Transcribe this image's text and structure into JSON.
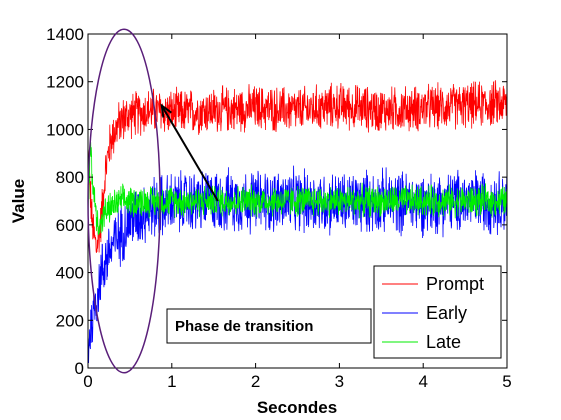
{
  "chart_data": {
    "type": "line",
    "title": "",
    "xlabel": "Secondes",
    "ylabel": "Value",
    "xlim": [
      0,
      5
    ],
    "ylim": [
      0,
      1400
    ],
    "xticks": [
      "0",
      "1",
      "2",
      "3",
      "4",
      "5"
    ],
    "yticks": [
      "0",
      "200",
      "400",
      "600",
      "800",
      "1000",
      "1200",
      "1400"
    ],
    "grid": false,
    "legend_position": "bottom-right",
    "series": [
      {
        "name": "Prompt",
        "color": "#ff0000",
        "x": [
          0,
          0.05,
          0.1,
          0.15,
          0.2,
          0.25,
          0.3,
          0.4,
          0.5,
          0.75,
          1.0,
          1.5,
          2.0,
          2.5,
          3.0,
          3.5,
          4.0,
          4.5,
          5.0
        ],
        "y": [
          900,
          600,
          500,
          600,
          800,
          920,
          980,
          1040,
          1060,
          1080,
          1070,
          1080,
          1090,
          1080,
          1100,
          1080,
          1090,
          1100,
          1110
        ],
        "noise_amplitude": 80
      },
      {
        "name": "Early",
        "color": "#0000ff",
        "x": [
          0,
          0.05,
          0.1,
          0.15,
          0.2,
          0.3,
          0.4,
          0.5,
          0.75,
          1.0,
          1.5,
          2.0,
          2.5,
          3.0,
          3.5,
          4.0,
          4.5,
          5.0
        ],
        "y": [
          100,
          200,
          300,
          380,
          450,
          520,
          570,
          620,
          670,
          690,
          700,
          700,
          700,
          690,
          700,
          690,
          700,
          700
        ],
        "noise_amplitude": 110
      },
      {
        "name": "Late",
        "color": "#00ee00",
        "x": [
          0,
          0.03,
          0.05,
          0.08,
          0.1,
          0.15,
          0.2,
          0.3,
          0.4,
          0.5,
          0.75,
          1.0,
          1.5,
          2.0,
          2.5,
          3.0,
          3.5,
          4.0,
          4.5,
          5.0
        ],
        "y": [
          600,
          950,
          800,
          700,
          620,
          600,
          650,
          680,
          700,
          700,
          700,
          700,
          700,
          700,
          700,
          700,
          700,
          700,
          700,
          700
        ],
        "noise_amplitude": 55
      }
    ],
    "annotations": [
      {
        "text": "Phase de transition",
        "ellipse_center": [
          0.43,
          700
        ],
        "ellipse_radii": [
          0.43,
          720
        ],
        "arrow_from": [
          1.55,
          700
        ],
        "arrow_to": [
          0.88,
          1100
        ]
      }
    ]
  }
}
